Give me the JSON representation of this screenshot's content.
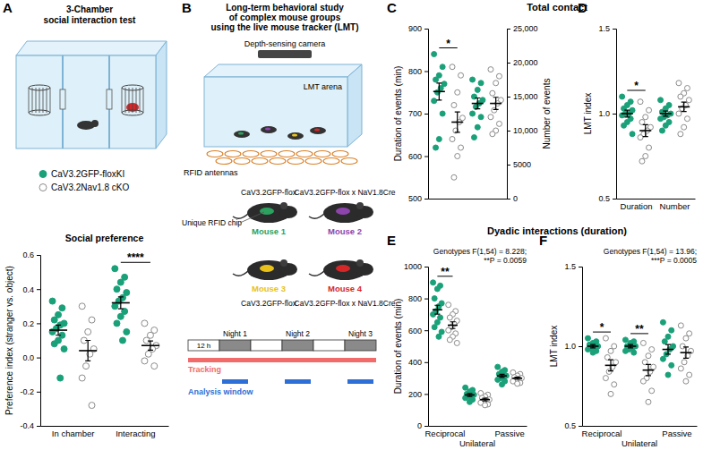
{
  "figure": {
    "panel_labels": [
      "A",
      "B",
      "C",
      "D",
      "E",
      "F"
    ],
    "section_titles": [
      "Total contact",
      "Dyadic interactions (duration)"
    ],
    "chamber_test": {
      "title_lines": [
        "3-Chamber",
        "social interaction test"
      ]
    },
    "lmt": {
      "title_lines": [
        "Long-term behavioral study",
        "of complex mouse groups",
        "using the live mouse tracker (LMT)"
      ],
      "camera": "Depth-sensing camera",
      "arena": "LMT arena",
      "antennas": "RFID antennas",
      "chip": "Unique RFID chip",
      "mice": [
        {
          "label": "Mouse 1",
          "genotype": "CaV3.2GFP-flox",
          "color": "#2ca25f"
        },
        {
          "label": "Mouse 2",
          "genotype": "CaV3.2GFP-flox x NaV1.8Cre",
          "color": "#8e44ad"
        },
        {
          "label": "Mouse 3",
          "genotype": "CaV3.2GFP-flox",
          "color": "#e8c21a"
        },
        {
          "label": "Mouse 4",
          "genotype": "CaV3.2GFP-flox x NaV1.8Cre",
          "color": "#d62728"
        }
      ],
      "timeline": {
        "day": "12 h",
        "nights": [
          "Night 1",
          "Night 2",
          "Night 3"
        ],
        "tracking": "Tracking",
        "tracking_color": "#f26b6b",
        "analysis": "Analysis window",
        "analysis_color": "#2d6fd6"
      }
    }
  },
  "chart_data": [
    {
      "type": "dot",
      "title": "Social preference",
      "ylabel": "Preference index (stranger vs. object)",
      "categories": [
        "In chamber",
        "Interacting"
      ],
      "ylim": [
        -0.4,
        0.6
      ],
      "yticks": [
        -0.4,
        -0.2,
        {
          "value": 0,
          "label": "0.0"
        },
        0.2,
        0.4,
        0.6
      ],
      "legend": "top",
      "series": [
        {
          "name": "CaV3.2GFP-floxKI",
          "color": "#1aa179",
          "marker": "circle",
          "values": [
            0.16,
            0.32
          ],
          "errors": [
            0.03,
            0.035
          ],
          "points": [
            [
              0.33,
              0.29,
              0.25,
              0.22,
              0.2,
              0.19,
              0.17,
              0.15,
              0.13,
              0.1,
              0.08,
              0.05,
              -0.12
            ],
            [
              0.52,
              0.47,
              0.44,
              0.4,
              0.38,
              0.35,
              0.33,
              0.3,
              0.27,
              0.24,
              0.2,
              0.15,
              0.1
            ]
          ]
        },
        {
          "name": "CaV3.2Nav1.8 cKO",
          "color": "#8c8c8c",
          "marker": "open_circle",
          "values": [
            0.04,
            0.07
          ],
          "errors": [
            0.06,
            0.027
          ],
          "points": [
            [
              0.3,
              0.22,
              0.15,
              0.1,
              0.05,
              0.02,
              -0.05,
              -0.12,
              -0.28
            ],
            [
              0.2,
              0.16,
              0.13,
              0.1,
              0.07,
              0.05,
              0.02,
              -0.02,
              -0.05
            ]
          ]
        }
      ],
      "annotations": [
        {
          "text": "****",
          "category": 1
        }
      ]
    },
    {
      "type": "dot",
      "ylabel": "Duration of events (min)",
      "y2label": "Number of events",
      "categories": [
        null,
        null
      ],
      "ylim": [
        500,
        900
      ],
      "yticks": [
        500,
        600,
        700,
        800,
        900
      ],
      "y2lim": [
        0,
        25000
      ],
      "y2ticks": [
        0,
        5000,
        {
          "value": 10000,
          "label": "10,000"
        },
        {
          "value": 15000,
          "label": "15,000"
        },
        {
          "value": 20000,
          "label": "20,000"
        },
        {
          "value": 25000,
          "label": "25,000"
        }
      ],
      "series": [
        {
          "color": "#1aa179",
          "marker": "circle",
          "values": [
            752,
            null
          ],
          "errors": [
            20,
            null
          ],
          "points": [
            [
              840,
              810,
              790,
              780,
              770,
              760,
              750,
              730,
              700,
              640,
              620
            ],
            null
          ]
        },
        {
          "color": "#8c8c8c",
          "marker": "open_circle",
          "values": [
            680,
            null
          ],
          "errors": [
            24,
            null
          ],
          "points": [
            [
              810,
              790,
              750,
              720,
              690,
              680,
              660,
              640,
              620,
              600,
              550
            ],
            null
          ]
        },
        {
          "color": "#1aa179",
          "marker": "circle",
          "axis": "y2",
          "values": [
            null,
            14000
          ],
          "errors": [
            null,
            800
          ],
          "points": [
            null,
            [
              17500,
              17000,
              16000,
              15000,
              14500,
              14000,
              13500,
              12500,
              12000,
              10500,
              9000
            ]
          ]
        },
        {
          "color": "#8c8c8c",
          "marker": "open_circle",
          "axis": "y2",
          "values": [
            null,
            14000
          ],
          "errors": [
            null,
            900
          ],
          "points": [
            null,
            [
              19000,
              18000,
              17000,
              15500,
              14500,
              14000,
              13000,
              12000,
              11000,
              10000,
              9500
            ]
          ]
        }
      ],
      "annotations": [
        {
          "text": "*",
          "category": 0
        }
      ]
    },
    {
      "type": "dot",
      "ylabel": "LMT index",
      "categories": [
        "Duration",
        "Number"
      ],
      "ylim": [
        0.5,
        1.5
      ],
      "yticks": [
        0.5,
        {
          "value": 1,
          "label": "1.0"
        },
        1.5
      ],
      "series": [
        {
          "color": "#1aa179",
          "marker": "circle",
          "values": [
            1,
            1
          ],
          "errors": [
            0.02,
            0.015
          ],
          "points": [
            [
              1.1,
              1.07,
              1.05,
              1.03,
              1.02,
              1,
              1,
              0.99,
              0.97,
              0.95,
              0.93,
              0.88
            ],
            [
              1.08,
              1.05,
              1.03,
              1.01,
              1,
              0.99,
              0.98,
              0.97,
              0.95,
              0.93,
              0.9
            ]
          ]
        },
        {
          "color": "#8c8c8c",
          "marker": "open_circle",
          "values": [
            0.9,
            1.04
          ],
          "errors": [
            0.035,
            0.028
          ],
          "points": [
            [
              1.07,
              1.02,
              0.98,
              0.95,
              0.92,
              0.9,
              0.88,
              0.86,
              0.8,
              0.75,
              0.72
            ],
            [
              1.18,
              1.15,
              1.12,
              1.1,
              1.08,
              1.05,
              1.03,
              1,
              0.97,
              0.92,
              0.88
            ]
          ]
        }
      ],
      "annotations": [
        {
          "text": "*",
          "category": 0
        }
      ]
    },
    {
      "type": "dot",
      "ylabel": "Duration of events (min)",
      "categories": [
        "Reciprocal",
        "Unilateral",
        "Passive"
      ],
      "ylim": [
        0,
        1000
      ],
      "yticks": [
        0,
        200,
        400,
        600,
        800,
        1000
      ],
      "series": [
        {
          "color": "#1aa179",
          "marker": "circle",
          "values": [
            729,
            194,
            314
          ],
          "errors": [
            28,
            9,
            10
          ],
          "points": [
            [
              900,
              880,
              860,
              800,
              770,
              750,
              720,
              700,
              680,
              650,
              620,
              590,
              560
            ],
            [
              240,
              225,
              215,
              200,
              195,
              190,
              185,
              175,
              165,
              150
            ],
            [
              370,
              350,
              340,
              325,
              315,
              305,
              300,
              290,
              280,
              260
            ]
          ]
        },
        {
          "color": "#8c8c8c",
          "marker": "open_circle",
          "values": [
            632,
            165,
            299
          ],
          "errors": [
            21,
            8,
            7
          ],
          "points": [
            [
              760,
              720,
              700,
              680,
              660,
              640,
              620,
              600,
              580,
              560,
              540,
              520
            ],
            [
              205,
              195,
              185,
              175,
              165,
              160,
              155,
              145,
              135,
              130
            ],
            [
              335,
              325,
              315,
              305,
              300,
              295,
              290,
              280,
              270,
              265
            ]
          ]
        }
      ],
      "annotations": [
        {
          "text": "**",
          "category": 0
        },
        {
          "lines": [
            "Genotypes F(1,54) = 8.228;",
            "**P = 0.0059"
          ]
        }
      ]
    },
    {
      "type": "dot",
      "ylabel": "LMT index",
      "categories": [
        "Reciprocal",
        "Unilateral",
        "Passive"
      ],
      "ylim": [
        0.5,
        1.5
      ],
      "yticks": [
        0.5,
        {
          "value": 1,
          "label": "1.0"
        },
        1.5
      ],
      "series": [
        {
          "color": "#1aa179",
          "marker": "circle",
          "values": [
            1,
            1,
            0.98
          ],
          "errors": [
            0.01,
            0.01,
            0.03
          ],
          "points": [
            [
              1.05,
              1.03,
              1.02,
              1.01,
              1,
              1,
              0.99,
              0.98,
              0.97,
              0.96
            ],
            [
              1.04,
              1.03,
              1.02,
              1,
              1,
              0.99,
              0.98,
              0.97,
              0.96
            ],
            [
              1.15,
              1.1,
              1.06,
              1.03,
              1,
              0.98,
              0.95,
              0.92,
              0.88,
              0.82
            ]
          ]
        },
        {
          "color": "#8c8c8c",
          "marker": "open_circle",
          "values": [
            0.88,
            0.85,
            0.96
          ],
          "errors": [
            0.035,
            0.035,
            0.035
          ],
          "points": [
            [
              1.05,
              1,
              0.97,
              0.93,
              0.9,
              0.87,
              0.84,
              0.8,
              0.76,
              0.7
            ],
            [
              1.02,
              0.98,
              0.94,
              0.9,
              0.87,
              0.84,
              0.8,
              0.78,
              0.72,
              0.65
            ],
            [
              1.13,
              1.08,
              1.05,
              1,
              0.97,
              0.94,
              0.9,
              0.86,
              0.82,
              0.78
            ]
          ]
        }
      ],
      "annotations": [
        {
          "text": "*",
          "category": 0
        },
        {
          "text": "**",
          "category": 1
        },
        {
          "lines": [
            "Genotypes F(1,54) = 13.96;",
            "***P = 0.0005"
          ]
        }
      ]
    }
  ]
}
